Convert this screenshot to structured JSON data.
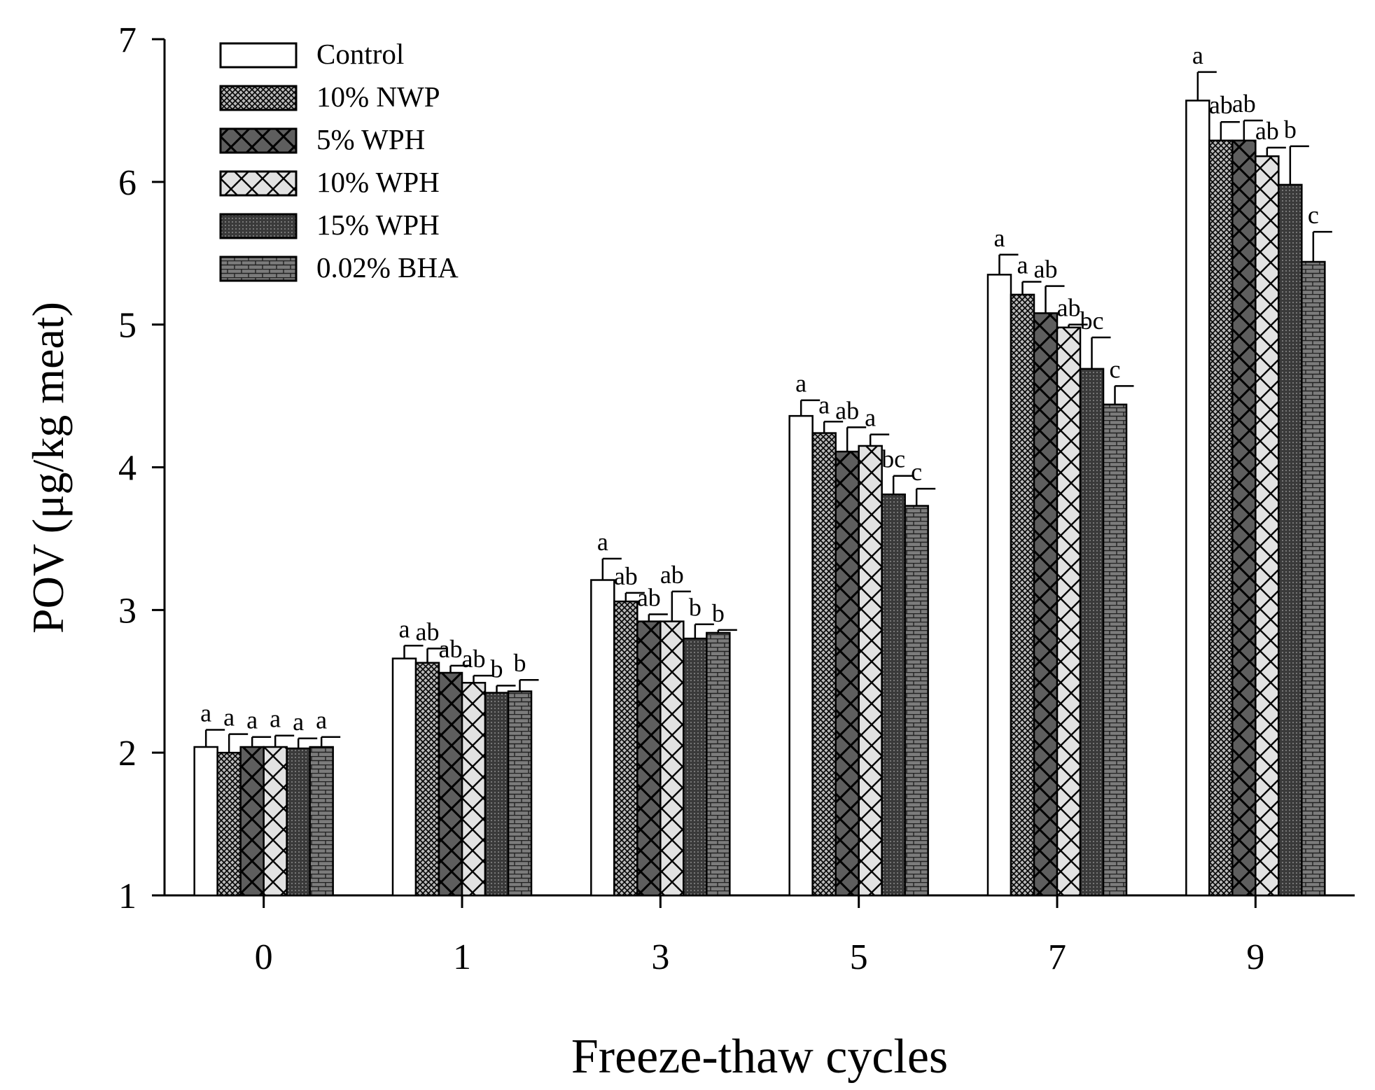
{
  "chart_data": {
    "type": "bar",
    "title": "",
    "xlabel": "Freeze-thaw cycles",
    "ylabel": "POV (μg/kg meat)",
    "ylim": [
      1,
      7
    ],
    "yticks": [
      "1",
      "2",
      "3",
      "4",
      "5",
      "6",
      "7"
    ],
    "categories": [
      "0",
      "1",
      "3",
      "5",
      "7",
      "9"
    ],
    "legend_position": "top-left",
    "series": [
      {
        "name": "Control",
        "pattern": "white",
        "values": [
          2.04,
          2.66,
          3.21,
          4.36,
          5.35,
          6.57
        ],
        "errors": [
          0.12,
          0.09,
          0.15,
          0.11,
          0.14,
          0.2
        ],
        "letters": [
          "a",
          "a",
          "a",
          "a",
          "a",
          "a"
        ]
      },
      {
        "name": "10% NWP",
        "pattern": "dots",
        "values": [
          2.0,
          2.63,
          3.06,
          4.24,
          5.21,
          6.29
        ],
        "errors": [
          0.13,
          0.1,
          0.06,
          0.08,
          0.09,
          0.13
        ],
        "letters": [
          "a",
          "ab",
          "ab",
          "a",
          "a",
          "ab"
        ]
      },
      {
        "name": "5% WPH",
        "pattern": "cross-dark",
        "values": [
          2.04,
          2.56,
          2.92,
          4.11,
          5.08,
          6.29
        ],
        "errors": [
          0.07,
          0.05,
          0.05,
          0.17,
          0.19,
          0.14
        ],
        "letters": [
          "a",
          "ab",
          "ab",
          "ab",
          "ab",
          "ab"
        ]
      },
      {
        "name": "10% WPH",
        "pattern": "cross-light",
        "values": [
          2.04,
          2.49,
          2.92,
          4.15,
          4.98,
          6.18
        ],
        "errors": [
          0.08,
          0.05,
          0.21,
          0.08,
          0.02,
          0.06
        ],
        "letters": [
          "a",
          "ab",
          "ab",
          "a",
          "ab",
          "ab"
        ]
      },
      {
        "name": "15% WPH",
        "pattern": "dense",
        "values": [
          2.03,
          2.42,
          2.8,
          3.81,
          4.69,
          5.98
        ],
        "errors": [
          0.07,
          0.05,
          0.1,
          0.13,
          0.22,
          0.27
        ],
        "letters": [
          "a",
          "b",
          "b",
          "bc",
          "bc",
          "b"
        ]
      },
      {
        "name": "0.02% BHA",
        "pattern": "brick",
        "values": [
          2.04,
          2.43,
          2.84,
          3.73,
          4.44,
          5.44
        ],
        "errors": [
          0.07,
          0.08,
          0.02,
          0.12,
          0.13,
          0.21
        ],
        "letters": [
          "a",
          "b",
          "b",
          "c",
          "c",
          "c"
        ]
      }
    ]
  }
}
